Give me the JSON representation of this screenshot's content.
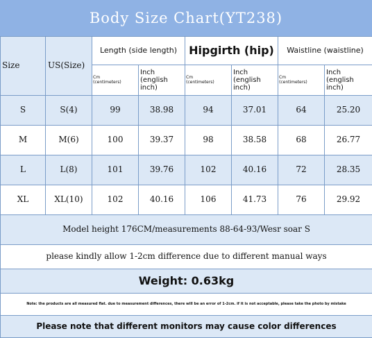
{
  "title": "Body Size Chart(YT238)",
  "columns": {
    "size": "Size",
    "us_size": "US(Size)",
    "groups": [
      {
        "label": "Length (side length)",
        "cm": "Cm\n(centimeters)",
        "inch": "Inch\n(english\ninch)"
      },
      {
        "label": "Hipgirth (hip)",
        "cm": "Cm\n(centimeters)",
        "inch": "Inch\n(english\ninch)"
      },
      {
        "label": "Waistline (waistline)",
        "cm": "Cm\n(centimeters)",
        "inch": "Inch\n(english\ninch)"
      }
    ]
  },
  "rows": [
    {
      "size": "S",
      "us": "S(4)",
      "values": [
        "99",
        "38.98",
        "94",
        "37.01",
        "64",
        "25.20"
      ]
    },
    {
      "size": "M",
      "us": "M(6)",
      "values": [
        "100",
        "39.37",
        "98",
        "38.58",
        "68",
        "26.77"
      ]
    },
    {
      "size": "L",
      "us": "L(8)",
      "values": [
        "101",
        "39.76",
        "102",
        "40.16",
        "72",
        "28.35"
      ]
    },
    {
      "size": "XL",
      "us": "XL(10)",
      "values": [
        "102",
        "40.16",
        "106",
        "41.73",
        "76",
        "29.92"
      ]
    }
  ],
  "notes": {
    "model": "Model height 176CM/measurements 88-64-93/Wesr soar S",
    "allowance": "please kindly allow 1-2cm difference due to different manual ways",
    "weight": "Weight: 0.63kg",
    "disclaimer": "Note: the products are all measured flat. due to measurement differences, there will be an error of 1-2cm. if it is not acceptable, please take the photo by mistake",
    "monitor": "Please note that different monitors may cause color differences"
  },
  "colors": {
    "title_bg": "#8fb2e4",
    "row_light": "#dce8f6",
    "row_white": "#ffffff",
    "border": "#7a9cc8"
  }
}
